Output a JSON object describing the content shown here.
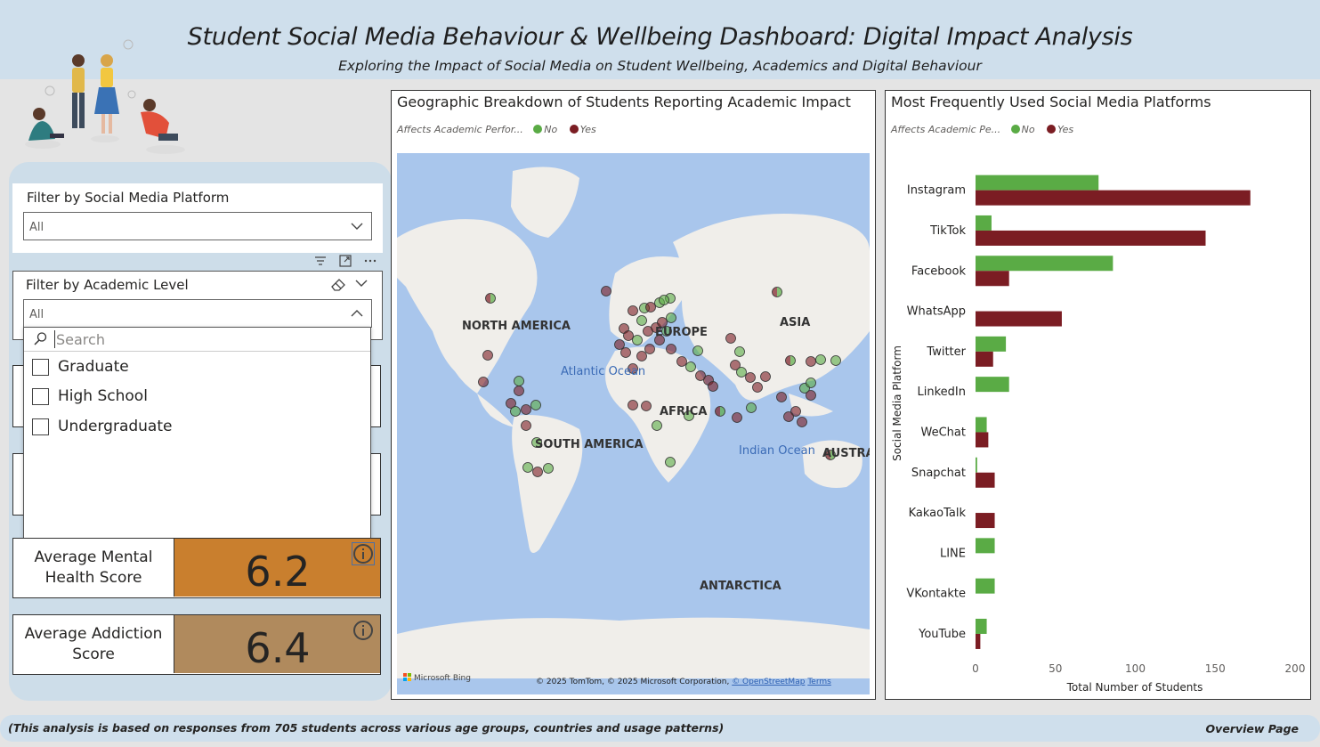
{
  "header": {
    "title": "Student Social Media Behaviour & Wellbeing Dashboard: Digital Impact Analysis",
    "subtitle": "Exploring the Impact of Social Media on Student Wellbeing, Academics and Digital Behaviour"
  },
  "filters": {
    "platform": {
      "label": "Filter by Social Media Platform",
      "value": "All"
    },
    "academic_level": {
      "label": "Filter by Academic Level",
      "value": "All",
      "search_placeholder": "Search",
      "options": [
        "Graduate",
        "High School",
        "Undergraduate"
      ]
    }
  },
  "kpis": [
    {
      "label": "Average Mental Health Score",
      "value": "6.2",
      "color": "#c97f2e"
    },
    {
      "label": "Average Addiction Score",
      "value": "6.4",
      "color": "#b08a5d"
    }
  ],
  "map": {
    "title": "Geographic Breakdown of Students Reporting Academic Impact",
    "legend_title": "Affects Academic Perfor...",
    "legend": [
      {
        "name": "No",
        "color": "#5aab45"
      },
      {
        "name": "Yes",
        "color": "#7b1d23"
      }
    ],
    "labels": [
      "NORTH AMERICA",
      "EUROPE",
      "ASIA",
      "AFRICA",
      "SOUTH AMERICA",
      "AUSTRA",
      "ANTARCTICA",
      "Atlantic Ocean",
      "Indian Ocean"
    ],
    "attribution": "© 2025 TomTom, © 2025 Microsoft Corporation,",
    "attribution_osm": "© OpenStreetMap",
    "attribution_terms": "Terms",
    "bing_logo": "Microsoft Bing",
    "ocean_color": "#a9c6ec",
    "land_color": "#f0eeea"
  },
  "chart_data": {
    "type": "bar",
    "orientation": "horizontal",
    "title": "Most Frequently Used Social Media Platforms",
    "legend_title": "Affects Academic Pe...",
    "xlabel": "Total Number of Students",
    "ylabel": "Social Media Platform",
    "xlim": [
      0,
      200
    ],
    "xticks": [
      0,
      50,
      100,
      150,
      200
    ],
    "categories": [
      "Instagram",
      "TikTok",
      "Facebook",
      "WhatsApp",
      "Twitter",
      "LinkedIn",
      "WeChat",
      "Snapchat",
      "KakaoTalk",
      "LINE",
      "VKontakte",
      "YouTube"
    ],
    "series": [
      {
        "name": "No",
        "color": "#5aab45",
        "values": [
          77,
          10,
          86,
          0,
          19,
          21,
          7,
          1,
          0,
          12,
          12,
          7
        ]
      },
      {
        "name": "Yes",
        "color": "#7b1d23",
        "values": [
          172,
          144,
          21,
          54,
          11,
          0,
          8,
          12,
          12,
          0,
          0,
          3
        ]
      }
    ],
    "legend_position": "top-left",
    "grid": false
  },
  "footer": {
    "note": "(This analysis is based on responses from 705 students across various age groups, countries and usage patterns)",
    "page": "Overview Page"
  }
}
